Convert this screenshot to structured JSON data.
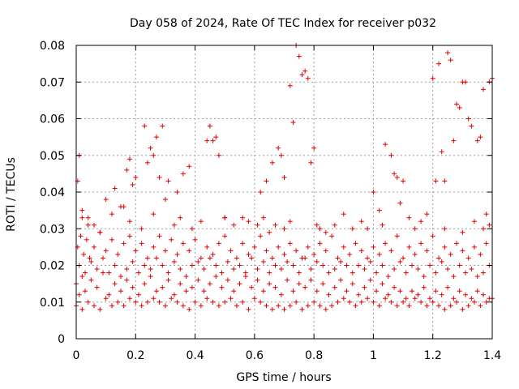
{
  "chart_data": {
    "type": "scatter",
    "title": "Day 058 of 2024, Rate Of TEC Index for receiver p032",
    "xlabel": "GPS time / hours",
    "ylabel": "ROTI / TECUs",
    "xlim": [
      0,
      1.4
    ],
    "ylim": [
      0,
      0.08
    ],
    "xticks": [
      0,
      0.2,
      0.4,
      0.6,
      0.8,
      1,
      1.2,
      1.4
    ],
    "xtick_labels": [
      "0",
      "0.2",
      "0.4",
      "0.6",
      "0.8",
      "1",
      "1.2",
      "1.4"
    ],
    "yticks": [
      0,
      0.01,
      0.02,
      0.03,
      0.04,
      0.05,
      0.06,
      0.07,
      0.08
    ],
    "ytick_labels": [
      "0",
      "0.01",
      "0.02",
      "0.03",
      "0.04",
      "0.05",
      "0.06",
      "0.07",
      "0.08"
    ],
    "grid": true,
    "marker": "+",
    "color": "#e00000",
    "series": [
      {
        "name": "p032",
        "x": [
          0.0,
          0.01,
          0.02,
          0.03,
          0.05,
          0.07,
          0.09,
          0.11,
          0.13,
          0.15,
          0.17,
          0.19,
          0.21,
          0.23,
          0.25,
          0.27,
          0.29,
          0.31,
          0.33,
          0.35,
          0.37,
          0.39,
          0.41,
          0.43,
          0.45,
          0.47,
          0.49,
          0.51,
          0.53,
          0.55,
          0.57,
          0.59,
          0.61,
          0.63,
          0.65,
          0.67,
          0.69,
          0.71,
          0.73,
          0.75,
          0.77,
          0.79,
          0.81,
          0.83,
          0.85,
          0.87,
          0.89,
          0.91,
          0.93,
          0.95,
          0.97,
          0.99,
          1.01,
          1.03,
          1.05,
          1.07,
          1.09,
          1.11,
          1.13,
          1.15,
          1.17,
          1.19,
          1.21,
          1.23,
          1.25,
          1.27,
          1.29,
          1.31,
          1.33,
          1.35,
          1.37,
          1.39,
          0.0,
          0.02,
          0.04,
          0.06,
          0.08,
          0.1,
          0.12,
          0.14,
          0.16,
          0.18,
          0.2,
          0.22,
          0.24,
          0.26,
          0.28,
          0.3,
          0.32,
          0.34,
          0.36,
          0.38,
          0.4,
          0.42,
          0.44,
          0.46,
          0.48,
          0.5,
          0.52,
          0.54,
          0.56,
          0.58,
          0.6,
          0.62,
          0.64,
          0.66,
          0.68,
          0.7,
          0.72,
          0.74,
          0.76,
          0.78,
          0.8,
          0.82,
          0.84,
          0.86,
          0.88,
          0.9,
          0.92,
          0.94,
          0.96,
          0.98,
          1.0,
          1.02,
          1.04,
          1.06,
          1.08,
          1.1,
          1.12,
          1.14,
          1.16,
          1.18,
          1.2,
          1.22,
          1.24,
          1.26,
          1.28,
          1.3,
          1.32,
          1.34,
          1.36,
          1.38,
          1.4,
          0.01,
          0.03,
          0.05,
          0.07,
          0.09,
          0.11,
          0.13,
          0.15,
          0.17,
          0.19,
          0.21,
          0.23,
          0.25,
          0.27,
          0.29,
          0.31,
          0.33,
          0.35,
          0.37,
          0.39,
          0.41,
          0.43,
          0.45,
          0.47,
          0.49,
          0.51,
          0.53,
          0.55,
          0.57,
          0.59,
          0.61,
          0.63,
          0.65,
          0.67,
          0.69,
          0.71,
          0.73,
          0.75,
          0.77,
          0.79,
          0.81,
          0.83,
          0.85,
          0.87,
          0.89,
          0.91,
          0.93,
          0.95,
          0.97,
          0.99,
          1.01,
          1.03,
          1.05,
          1.07,
          1.09,
          1.11,
          1.13,
          1.15,
          1.17,
          1.19,
          1.21,
          1.23,
          1.25,
          1.27,
          1.29,
          1.31,
          1.33,
          1.35,
          1.37,
          1.39,
          0.005,
          0.015,
          0.025,
          0.035,
          0.045,
          0.06,
          0.08,
          0.1,
          0.12,
          0.14,
          0.16,
          0.18,
          0.2,
          0.22,
          0.24,
          0.26,
          0.28,
          0.3,
          0.32,
          0.34,
          0.36,
          0.38,
          0.4,
          0.42,
          0.44,
          0.46,
          0.48,
          0.5,
          0.52,
          0.54,
          0.56,
          0.58,
          0.6,
          0.62,
          0.64,
          0.66,
          0.68,
          0.7,
          0.72,
          0.74,
          0.76,
          0.78,
          0.8,
          0.82,
          0.84,
          0.86,
          0.88,
          0.9,
          0.92,
          0.94,
          0.96,
          0.98,
          1.0,
          1.02,
          1.04,
          1.06,
          1.08,
          1.1,
          1.12,
          1.14,
          1.16,
          1.18,
          1.2,
          1.22,
          1.24,
          1.26,
          1.28,
          1.3,
          1.32,
          1.34,
          1.36,
          1.38,
          0.005,
          0.01,
          0.02,
          0.04,
          0.06,
          0.1,
          0.13,
          0.16,
          0.17,
          0.18,
          0.19,
          0.2,
          0.23,
          0.24,
          0.25,
          0.26,
          0.27,
          0.28,
          0.29,
          0.3,
          0.31,
          0.34,
          0.36,
          0.38,
          0.44,
          0.45,
          0.46,
          0.47,
          0.48,
          0.5,
          0.62,
          0.64,
          0.66,
          0.68,
          0.69,
          0.7,
          0.72,
          0.73,
          0.74,
          0.75,
          0.76,
          0.77,
          0.78,
          0.79,
          0.8,
          0.81,
          0.82,
          1.0,
          1.02,
          1.04,
          1.06,
          1.07,
          1.08,
          1.09,
          1.1,
          1.2,
          1.21,
          1.22,
          1.23,
          1.24,
          1.25,
          1.26,
          1.27,
          1.28,
          1.29,
          1.3,
          1.31,
          1.32,
          1.33,
          1.35,
          1.36,
          1.37,
          1.38,
          1.39,
          1.4,
          0.02,
          0.04,
          0.08,
          0.12,
          0.15,
          0.18,
          0.22,
          0.26,
          0.33,
          0.35,
          0.39,
          0.42,
          0.5,
          0.53,
          0.56,
          0.58,
          0.61,
          0.63,
          0.65,
          0.67,
          0.7,
          0.72,
          0.84,
          0.87,
          0.9,
          0.93,
          0.96,
          0.98,
          1.03,
          1.12,
          1.14,
          1.16,
          1.18,
          1.24,
          1.3,
          1.34,
          1.37,
          1.39
        ],
        "y": [
          0.015,
          0.012,
          0.017,
          0.013,
          0.016,
          0.014,
          0.018,
          0.012,
          0.015,
          0.013,
          0.016,
          0.014,
          0.012,
          0.015,
          0.017,
          0.013,
          0.014,
          0.016,
          0.012,
          0.015,
          0.013,
          0.014,
          0.016,
          0.013,
          0.015,
          0.017,
          0.014,
          0.016,
          0.013,
          0.015,
          0.017,
          0.014,
          0.016,
          0.013,
          0.015,
          0.014,
          0.012,
          0.016,
          0.013,
          0.015,
          0.014,
          0.016,
          0.013,
          0.015,
          0.012,
          0.014,
          0.016,
          0.013,
          0.015,
          0.012,
          0.014,
          0.016,
          0.013,
          0.015,
          0.012,
          0.014,
          0.013,
          0.011,
          0.013,
          0.012,
          0.014,
          0.011,
          0.013,
          0.012,
          0.014,
          0.011,
          0.013,
          0.012,
          0.011,
          0.013,
          0.012,
          0.011,
          0.009,
          0.008,
          0.01,
          0.009,
          0.008,
          0.011,
          0.009,
          0.01,
          0.009,
          0.011,
          0.01,
          0.009,
          0.01,
          0.011,
          0.01,
          0.009,
          0.011,
          0.01,
          0.009,
          0.008,
          0.01,
          0.009,
          0.011,
          0.01,
          0.009,
          0.01,
          0.011,
          0.009,
          0.01,
          0.008,
          0.011,
          0.01,
          0.009,
          0.008,
          0.009,
          0.008,
          0.009,
          0.01,
          0.008,
          0.009,
          0.01,
          0.009,
          0.008,
          0.009,
          0.01,
          0.011,
          0.01,
          0.009,
          0.01,
          0.011,
          0.01,
          0.009,
          0.011,
          0.01,
          0.009,
          0.01,
          0.009,
          0.011,
          0.01,
          0.009,
          0.01,
          0.009,
          0.008,
          0.009,
          0.01,
          0.008,
          0.009,
          0.01,
          0.009,
          0.01,
          0.011,
          0.02,
          0.018,
          0.021,
          0.019,
          0.022,
          0.018,
          0.02,
          0.017,
          0.019,
          0.021,
          0.018,
          0.02,
          0.019,
          0.022,
          0.02,
          0.018,
          0.021,
          0.019,
          0.017,
          0.02,
          0.021,
          0.019,
          0.022,
          0.02,
          0.018,
          0.021,
          0.019,
          0.02,
          0.018,
          0.022,
          0.019,
          0.021,
          0.018,
          0.02,
          0.019,
          0.021,
          0.02,
          0.018,
          0.022,
          0.019,
          0.021,
          0.02,
          0.018,
          0.019,
          0.021,
          0.02,
          0.018,
          0.02,
          0.019,
          0.021,
          0.018,
          0.02,
          0.017,
          0.019,
          0.021,
          0.018,
          0.02,
          0.019,
          0.017,
          0.02,
          0.018,
          0.021,
          0.019,
          0.017,
          0.02,
          0.018,
          0.019,
          0.017,
          0.018,
          0.02,
          0.025,
          0.028,
          0.023,
          0.027,
          0.022,
          0.025,
          0.029,
          0.024,
          0.027,
          0.023,
          0.026,
          0.028,
          0.024,
          0.026,
          0.022,
          0.025,
          0.028,
          0.024,
          0.027,
          0.023,
          0.026,
          0.024,
          0.027,
          0.022,
          0.025,
          0.023,
          0.026,
          0.028,
          0.024,
          0.022,
          0.026,
          0.023,
          0.025,
          0.028,
          0.024,
          0.022,
          0.025,
          0.023,
          0.026,
          0.024,
          0.022,
          0.025,
          0.023,
          0.026,
          0.024,
          0.028,
          0.022,
          0.025,
          0.023,
          0.026,
          0.024,
          0.022,
          0.025,
          0.023,
          0.026,
          0.024,
          0.028,
          0.022,
          0.025,
          0.023,
          0.026,
          0.024,
          0.028,
          0.022,
          0.025,
          0.023,
          0.026,
          0.024,
          0.022,
          0.025,
          0.023,
          0.026,
          0.043,
          0.05,
          0.035,
          0.033,
          0.031,
          0.038,
          0.041,
          0.036,
          0.046,
          0.049,
          0.042,
          0.044,
          0.058,
          0.048,
          0.052,
          0.05,
          0.055,
          0.044,
          0.058,
          0.038,
          0.043,
          0.04,
          0.045,
          0.047,
          0.054,
          0.058,
          0.054,
          0.055,
          0.05,
          0.033,
          0.04,
          0.043,
          0.048,
          0.052,
          0.05,
          0.044,
          0.069,
          0.059,
          0.08,
          0.077,
          0.072,
          0.073,
          0.071,
          0.048,
          0.052,
          0.031,
          0.03,
          0.04,
          0.035,
          0.053,
          0.05,
          0.045,
          0.044,
          0.037,
          0.043,
          0.071,
          0.043,
          0.075,
          0.051,
          0.043,
          0.078,
          0.076,
          0.054,
          0.064,
          0.063,
          0.07,
          0.07,
          0.06,
          0.058,
          0.054,
          0.055,
          0.068,
          0.034,
          0.07,
          0.071,
          0.033,
          0.031,
          0.029,
          0.034,
          0.036,
          0.032,
          0.03,
          0.034,
          0.031,
          0.033,
          0.03,
          0.032,
          0.033,
          0.031,
          0.033,
          0.032,
          0.031,
          0.033,
          0.029,
          0.031,
          0.03,
          0.032,
          0.029,
          0.031,
          0.034,
          0.03,
          0.032,
          0.03,
          0.031,
          0.033,
          0.03,
          0.032,
          0.034,
          0.03,
          0.029,
          0.032,
          0.03,
          0.031
        ]
      }
    ]
  }
}
